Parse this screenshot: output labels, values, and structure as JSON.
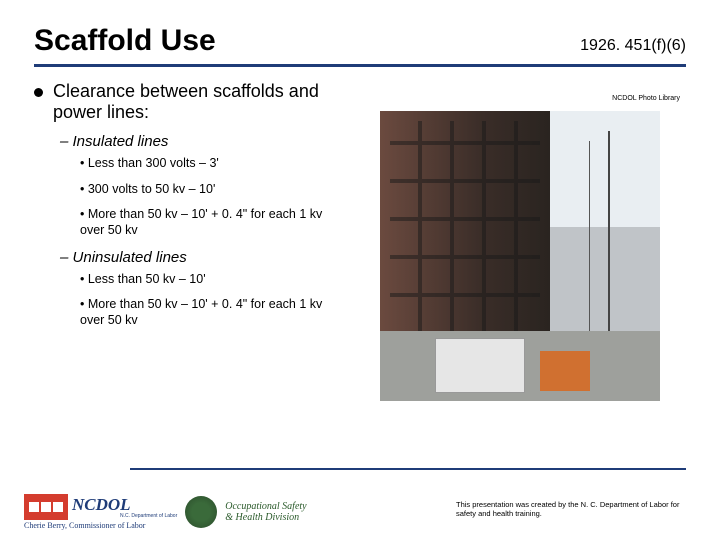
{
  "title": "Scaffold Use",
  "citation": "1926. 451(f)(6)",
  "main_bullet": "Clearance between scaffolds and power lines:",
  "sections": [
    {
      "heading": "Insulated lines",
      "items": [
        "Less than 300 volts – 3'",
        "300 volts to 50 kv – 10'",
        "More than 50 kv – 10' + 0. 4\" for each 1 kv over 50 kv"
      ]
    },
    {
      "heading": "Uninsulated lines",
      "items": [
        "Less than 50 kv – 10'",
        "More than 50 kv – 10' + 0. 4\" for each 1 kv over 50 kv"
      ]
    }
  ],
  "photo_credit": "NCDOL Photo Library",
  "logo": {
    "main": "NCDOL",
    "sub": "N.C. Department of Labor",
    "commissioner": "Cherie Berry, Commissioner of Labor",
    "osh1": "Occupational Safety",
    "osh2": "& Health Division"
  },
  "disclaimer": "This presentation was created by the N. C. Department of Labor for safety and health training.",
  "colors": {
    "rule": "#1f3c78",
    "logo_red": "#d43c2e",
    "osh_green": "#2a5a2a"
  }
}
